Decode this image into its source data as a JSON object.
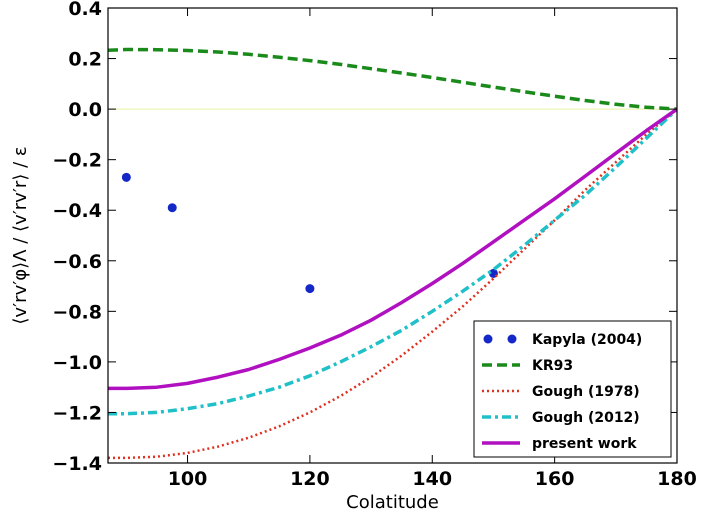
{
  "chart_data": {
    "type": "line",
    "xlabel": "Colatitude",
    "ylabel": "⟨v′rv′φ⟩Λ / ⟨v′rv′r⟩ / ε",
    "xlim": [
      87,
      180
    ],
    "ylim": [
      -1.4,
      0.4
    ],
    "xticks": [
      "100",
      "120",
      "140",
      "160",
      "180"
    ],
    "yticks": [
      "0.4",
      "0.2",
      "0.0",
      "−0.2",
      "−0.4",
      "−0.6",
      "−0.8",
      "−1.0",
      "−1.2",
      "−1.4"
    ],
    "grid": false,
    "legend_position": "bottom-right",
    "zero_line": {
      "y": 0.0,
      "color": "#e8f0a0"
    },
    "series": [
      {
        "name": "Kapyla (2004)",
        "style": "markers",
        "color": "#1428c8",
        "x": [
          90,
          97.5,
          120,
          150
        ],
        "y": [
          -0.27,
          -0.39,
          -0.71,
          -0.65
        ]
      },
      {
        "name": "KR93",
        "style": "dashed",
        "color": "#1a8a1a",
        "x": [
          87,
          90,
          95,
          100,
          105,
          110,
          115,
          120,
          125,
          130,
          135,
          140,
          145,
          150,
          155,
          160,
          165,
          170,
          175,
          180
        ],
        "y": [
          0.233,
          0.236,
          0.235,
          0.232,
          0.226,
          0.217,
          0.205,
          0.192,
          0.177,
          0.16,
          0.143,
          0.125,
          0.106,
          0.087,
          0.069,
          0.051,
          0.034,
          0.019,
          0.007,
          0.0
        ]
      },
      {
        "name": "Gough (1978)",
        "style": "dotted",
        "color": "#e03020",
        "x": [
          87,
          90,
          95,
          100,
          105,
          110,
          115,
          120,
          125,
          130,
          135,
          140,
          145,
          150,
          155,
          160,
          165,
          170,
          175,
          180
        ],
        "y": [
          -1.38,
          -1.38,
          -1.375,
          -1.36,
          -1.335,
          -1.3,
          -1.255,
          -1.2,
          -1.135,
          -1.06,
          -0.975,
          -0.88,
          -0.78,
          -0.67,
          -0.555,
          -0.44,
          -0.32,
          -0.21,
          -0.1,
          0.0
        ]
      },
      {
        "name": "Gough (2012)",
        "style": "dashdot",
        "color": "#20c0c8",
        "x": [
          87,
          90,
          95,
          100,
          105,
          110,
          115,
          120,
          125,
          130,
          135,
          140,
          145,
          150,
          155,
          160,
          165,
          170,
          175,
          180
        ],
        "y": [
          -1.205,
          -1.205,
          -1.2,
          -1.185,
          -1.165,
          -1.135,
          -1.1,
          -1.055,
          -1.0,
          -0.94,
          -0.875,
          -0.8,
          -0.72,
          -0.635,
          -0.54,
          -0.44,
          -0.34,
          -0.23,
          -0.115,
          0.0
        ]
      },
      {
        "name": "present work",
        "style": "solid",
        "color": "#b010c0",
        "x": [
          87,
          90,
          95,
          100,
          105,
          110,
          115,
          120,
          125,
          130,
          135,
          140,
          145,
          150,
          155,
          160,
          165,
          170,
          175,
          180
        ],
        "y": [
          -1.105,
          -1.105,
          -1.1,
          -1.085,
          -1.06,
          -1.03,
          -0.99,
          -0.945,
          -0.895,
          -0.835,
          -0.765,
          -0.69,
          -0.61,
          -0.525,
          -0.44,
          -0.355,
          -0.265,
          -0.175,
          -0.085,
          0.0
        ]
      }
    ]
  }
}
